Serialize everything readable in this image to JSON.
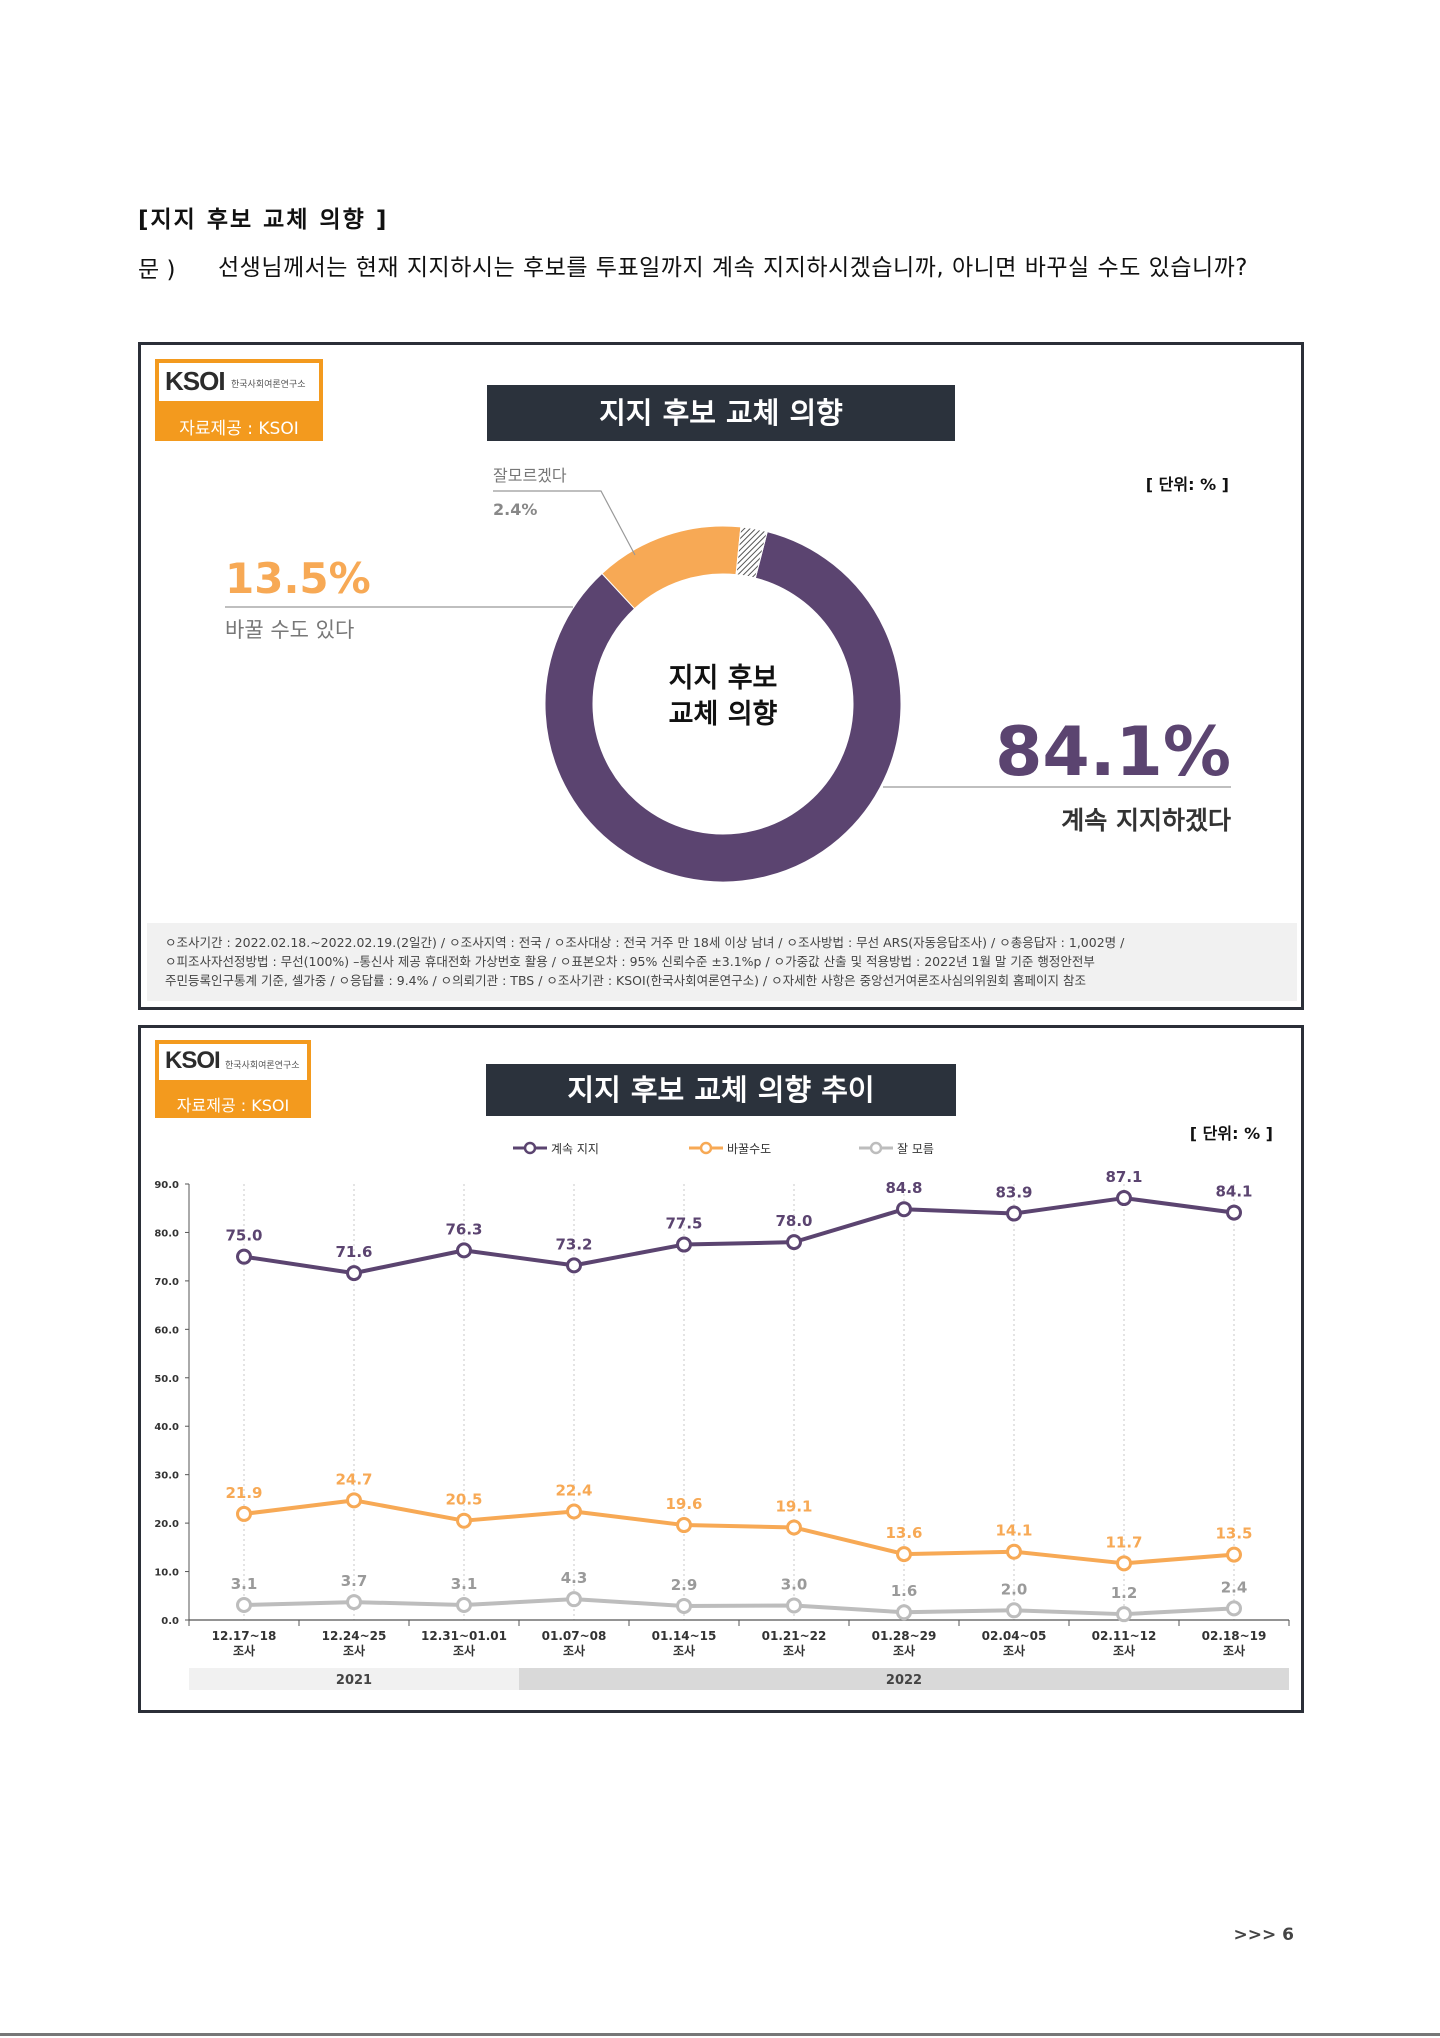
{
  "header": {
    "section_title": "[지지 후보 교체 의향 ]",
    "question_label": "문 )",
    "question_text": "선생님께서는 현재 지지하시는 후보를 투표일까지 계속 지지하시겠습니까, 아니면 바꾸실 수도 있습니까?"
  },
  "logo": {
    "brand": "KSOI",
    "subtitle": "한국사회여론연구소",
    "source": "자료제공 : KSOI"
  },
  "colors": {
    "purple": "#5b4470",
    "orange": "#f7a955",
    "gray": "#bdbdbd",
    "dark": "#2b323c",
    "brand_orange": "#f39a1e"
  },
  "donut_panel": {
    "title": "지지 후보 교체 의향",
    "unit": "[ 단위: % ]",
    "center_line1": "지지 후보",
    "center_line2": "교체 의향",
    "labels": {
      "continue_pct": "84.1%",
      "continue_name": "계속 지지하겠다",
      "change_pct": "13.5%",
      "change_name": "바꿀 수도 있다",
      "dk_name": "잘모르겠다",
      "dk_pct": "2.4%"
    },
    "footnote": [
      "ㅇ조사기간 : 2022.02.18.~2022.02.19.(2일간)  / ㅇ조사지역 : 전국 / ㅇ조사대상 : 전국 거주 만 18세 이상 남녀 / ㅇ조사방법 : 무선 ARS(자동응답조사) / ㅇ총응답자 : 1,002명 /",
      "ㅇ피조사자선정방법 : 무선(100%) –통신사 제공 휴대전화 가상번호 활용 / ㅇ표본오차 : 95% 신뢰수준 ±3.1%p / ㅇ가중값 산출 및 적용방법 : 2022년 1월 말 기준 행정안전부",
      "주민등록인구통계 기준, 셀가중 / ㅇ응답률 : 9.4% / ㅇ의뢰기관 : TBS / ㅇ조사기관 : KSOI(한국사회여론연구소) / ㅇ자세한 사항은 중앙선거여론조사심의위원회 홈페이지 참조"
    ]
  },
  "line_panel": {
    "title": "지지 후보 교체 의향 추이",
    "unit": "[ 단위: % ]",
    "year_labels": [
      "2021",
      "2022"
    ]
  },
  "chart_data": [
    {
      "type": "pie",
      "title": "지지 후보 교체 의향",
      "categories": [
        "계속 지지하겠다",
        "바꿀 수도 있다",
        "잘모르겠다"
      ],
      "values": [
        84.1,
        13.5,
        2.4
      ],
      "unit": "%"
    },
    {
      "type": "line",
      "title": "지지 후보 교체 의향 추이",
      "categories": [
        "12.17~18 조사",
        "12.24~25 조사",
        "12.31~01.01 조사",
        "01.07~08 조사",
        "01.14~15 조사",
        "01.21~22 조사",
        "01.28~29 조사",
        "02.04~05 조사",
        "02.11~12 조사",
        "02.18~19 조사"
      ],
      "x_lines": [
        [
          "12.17~18",
          "조사"
        ],
        [
          "12.24~25",
          "조사"
        ],
        [
          "12.31~01.01",
          "조사"
        ],
        [
          "01.07~08",
          "조사"
        ],
        [
          "01.14~15",
          "조사"
        ],
        [
          "01.21~22",
          "조사"
        ],
        [
          "01.28~29",
          "조사"
        ],
        [
          "02.04~05",
          "조사"
        ],
        [
          "02.11~12",
          "조사"
        ],
        [
          "02.18~19",
          "조사"
        ]
      ],
      "series": [
        {
          "name": "계속 지지",
          "values": [
            75.0,
            71.6,
            76.3,
            73.2,
            77.5,
            78.0,
            84.8,
            83.9,
            87.1,
            84.1
          ]
        },
        {
          "name": "바꿀수도",
          "values": [
            21.9,
            24.7,
            20.5,
            22.4,
            19.6,
            19.1,
            13.6,
            14.1,
            11.7,
            13.5
          ]
        },
        {
          "name": "잘 모름",
          "values": [
            3.1,
            3.7,
            3.1,
            4.3,
            2.9,
            3.0,
            1.6,
            2.0,
            1.2,
            2.4
          ]
        }
      ],
      "ylim": [
        0,
        90
      ],
      "yticks": [
        "0.0",
        "10.0",
        "20.0",
        "30.0",
        "40.0",
        "50.0",
        "60.0",
        "70.0",
        "80.0",
        "90.0"
      ],
      "legend": "top",
      "grid": "vertical dotted"
    }
  ],
  "page": {
    "number": ">>> 6"
  }
}
